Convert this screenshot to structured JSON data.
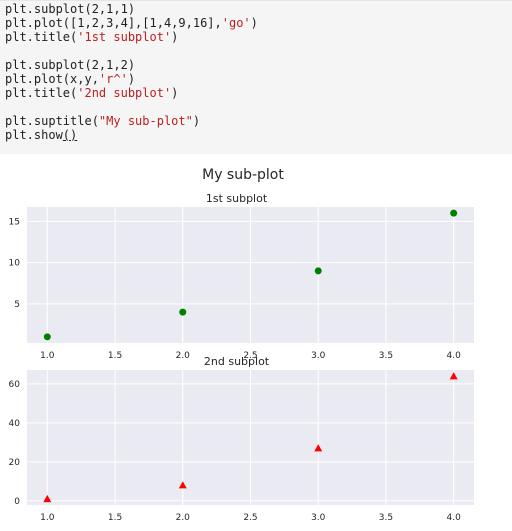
{
  "code": {
    "lines": [
      {
        "a": "plt.subplot(2,1,1)",
        "s": "",
        "b": ""
      },
      {
        "a": "plt.plot([1,2,3,4],[1,4,9,16],",
        "s": "'go'",
        "b": ")"
      },
      {
        "a": "plt.title(",
        "s": "'1st subplot'",
        "b": ")"
      },
      {
        "a": "",
        "s": "",
        "b": ""
      },
      {
        "a": "plt.subplot(2,1,2)",
        "s": "",
        "b": ""
      },
      {
        "a": "plt.plot(x,y,",
        "s": "'r^'",
        "b": ")"
      },
      {
        "a": "plt.title(",
        "s": "'2nd subplot'",
        "b": ")"
      },
      {
        "a": "",
        "s": "",
        "b": ""
      },
      {
        "a": "plt.suptitle(",
        "s": "\"My sub-plot\"",
        "b": ")"
      },
      {
        "a": "plt.show",
        "s": "",
        "b": "()"
      }
    ]
  },
  "figure": {
    "suptitle": "My sub-plot",
    "background": "#eaeaf2",
    "grid_color": "#ffffff"
  },
  "chart_data": [
    {
      "type": "scatter",
      "title": "1st subplot",
      "marker": "circle",
      "color": "#008000",
      "x": [
        1,
        2,
        3,
        4
      ],
      "y": [
        1,
        4,
        9,
        16
      ],
      "xlim": [
        0.85,
        4.15
      ],
      "ylim": [
        0.25,
        16.75
      ],
      "xticks": [
        "1.0",
        "1.5",
        "2.0",
        "2.5",
        "3.0",
        "3.5",
        "4.0"
      ],
      "xtick_values": [
        1.0,
        1.5,
        2.0,
        2.5,
        3.0,
        3.5,
        4.0
      ],
      "yticks": [
        "5",
        "10",
        "15"
      ],
      "ytick_values": [
        5,
        10,
        15
      ],
      "grid": true
    },
    {
      "type": "scatter",
      "title": "2nd subplot",
      "marker": "triangle-up",
      "color": "#ff0000",
      "x": [
        1,
        2,
        3,
        4
      ],
      "y": [
        1,
        8,
        27,
        64
      ],
      "xlim": [
        0.85,
        4.15
      ],
      "ylim": [
        -2.15,
        67.15
      ],
      "xticks": [
        "1.0",
        "1.5",
        "2.0",
        "2.5",
        "3.0",
        "3.5",
        "4.0"
      ],
      "xtick_values": [
        1.0,
        1.5,
        2.0,
        2.5,
        3.0,
        3.5,
        4.0
      ],
      "yticks": [
        "0",
        "20",
        "40",
        "60"
      ],
      "ytick_values": [
        0,
        20,
        40,
        60
      ],
      "grid": true
    }
  ]
}
